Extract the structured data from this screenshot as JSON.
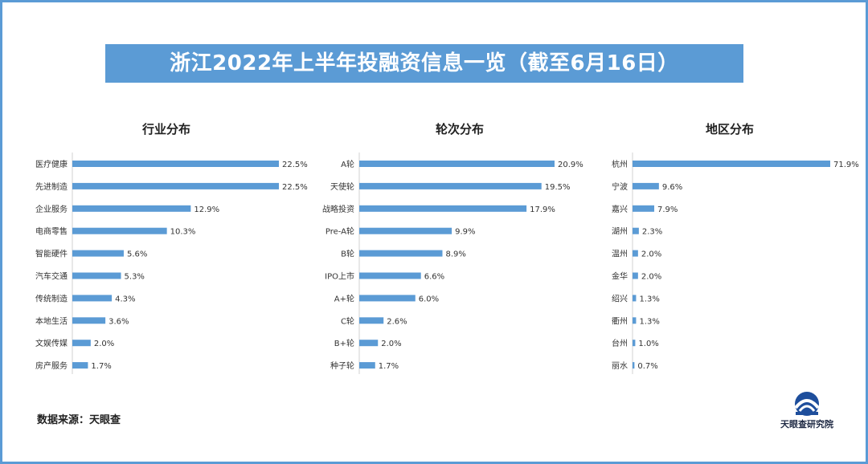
{
  "title": "浙江2022年上半年投融资信息一览（截至6月16日）",
  "source": "数据来源：天眼查",
  "logo_text": "天眼查研究院",
  "colors": {
    "bar": "#5b9bd5",
    "banner": "#5b9bd5",
    "border": "#5b9bd5"
  },
  "chart_data": [
    {
      "type": "bar",
      "orientation": "horizontal",
      "title": "行业分布",
      "categories": [
        "医疗健康",
        "先进制造",
        "企业服务",
        "电商零售",
        "智能硬件",
        "汽车交通",
        "传统制造",
        "本地生活",
        "文娱传媒",
        "房产服务"
      ],
      "values": [
        22.5,
        22.5,
        12.9,
        10.3,
        5.6,
        5.3,
        4.3,
        3.6,
        2.0,
        1.7
      ],
      "value_labels": [
        "22.5%",
        "22.5%",
        "12.9%",
        "10.3%",
        "5.6%",
        "5.3%",
        "4.3%",
        "3.6%",
        "2.0%",
        "1.7%"
      ],
      "unit": "%",
      "xlim": [
        0,
        22.5
      ]
    },
    {
      "type": "bar",
      "orientation": "horizontal",
      "title": "轮次分布",
      "categories": [
        "A轮",
        "天使轮",
        "战略投资",
        "Pre-A轮",
        "B轮",
        "IPO上市",
        "A+轮",
        "C轮",
        "B+轮",
        "种子轮"
      ],
      "values": [
        20.9,
        19.5,
        17.9,
        9.9,
        8.9,
        6.6,
        6.0,
        2.6,
        2.0,
        1.7
      ],
      "value_labels": [
        "20.9%",
        "19.5%",
        "17.9%",
        "9.9%",
        "8.9%",
        "6.6%",
        "6.0%",
        "2.6%",
        "2.0%",
        "1.7%"
      ],
      "unit": "%",
      "xlim": [
        0,
        20.9
      ]
    },
    {
      "type": "bar",
      "orientation": "horizontal",
      "title": "地区分布",
      "categories": [
        "杭州",
        "宁波",
        "嘉兴",
        "湖州",
        "温州",
        "金华",
        "绍兴",
        "衢州",
        "台州",
        "丽水"
      ],
      "values": [
        71.9,
        9.6,
        7.9,
        2.3,
        2.0,
        2.0,
        1.3,
        1.3,
        1.0,
        0.7
      ],
      "value_labels": [
        "71.9%",
        "9.6%",
        "7.9%",
        "2.3%",
        "2.0%",
        "2.0%",
        "1.3%",
        "1.3%",
        "1.0%",
        "0.7%"
      ],
      "unit": "%",
      "xlim": [
        0,
        71.9
      ]
    }
  ]
}
